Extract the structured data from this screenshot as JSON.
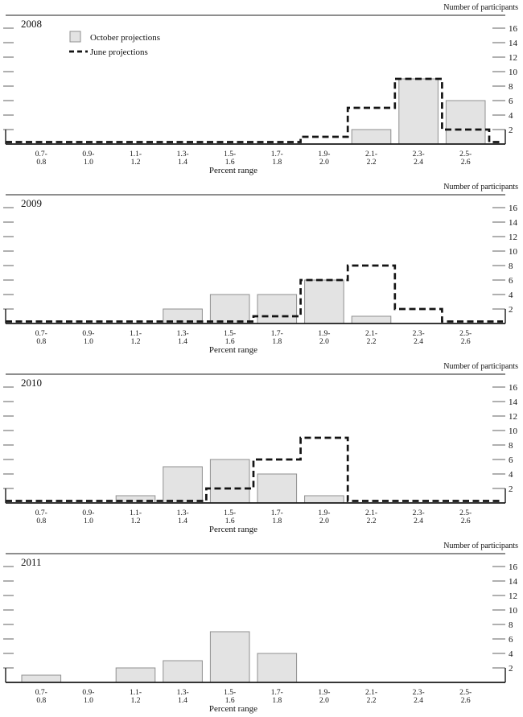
{
  "chart_data": {
    "type": "bar",
    "description": "Four stacked histogram panels showing distributions of participants' projections by percent range, comparing October projections (gray bars) with June projections (dashed step line).",
    "x_axis": {
      "label": "Percent range",
      "categories": [
        "0.7-0.8",
        "0.9-1.0",
        "1.1-1.2",
        "1.3-1.4",
        "1.5-1.6",
        "1.7-1.8",
        "1.9-2.0",
        "2.1-2.2",
        "2.3-2.4",
        "2.5-2.6"
      ]
    },
    "y_axis": {
      "label": "Number of participants",
      "ticks": [
        2,
        4,
        6,
        8,
        10,
        12,
        14,
        16
      ],
      "ylim": [
        0,
        17
      ],
      "grid": false
    },
    "legend": {
      "position": "top-left-first-panel",
      "items": [
        {
          "label": "October projections",
          "swatch": "gray-bar"
        },
        {
          "label": "June projections",
          "swatch": "black-dashed-line"
        }
      ]
    },
    "panels": [
      {
        "year": "2008",
        "series": [
          {
            "name": "October projections",
            "type": "bar",
            "values": [
              0,
              0,
              0,
              0,
              0,
              0,
              0,
              2,
              9,
              6
            ]
          },
          {
            "name": "June projections",
            "type": "step",
            "values": [
              0,
              0,
              0,
              0,
              0,
              0,
              1,
              5,
              9,
              2
            ]
          }
        ]
      },
      {
        "year": "2009",
        "series": [
          {
            "name": "October projections",
            "type": "bar",
            "values": [
              0,
              0,
              0,
              2,
              4,
              4,
              6,
              1,
              0,
              0
            ]
          },
          {
            "name": "June projections",
            "type": "step",
            "values": [
              0,
              0,
              0,
              0,
              0,
              1,
              6,
              8,
              2,
              0
            ]
          }
        ]
      },
      {
        "year": "2010",
        "series": [
          {
            "name": "October projections",
            "type": "bar",
            "values": [
              0,
              0,
              1,
              5,
              6,
              4,
              1,
              0,
              0,
              0
            ]
          },
          {
            "name": "June projections",
            "type": "step",
            "values": [
              0,
              0,
              0,
              0,
              2,
              6,
              9,
              0,
              0,
              0
            ]
          }
        ]
      },
      {
        "year": "2011",
        "series": [
          {
            "name": "October projections",
            "type": "bar",
            "values": [
              1,
              0,
              2,
              3,
              7,
              4,
              0,
              0,
              0,
              0
            ]
          },
          {
            "name": "June projections",
            "type": "step",
            "values": null
          }
        ]
      }
    ],
    "colors": {
      "bar_fill": "#e3e3e3",
      "bar_stroke": "#8f8f8f",
      "june_line": "#141414",
      "baseline": "#1a1a1a",
      "top_rule": "#4a4a4a",
      "tick": "#6e6e6e",
      "text": "#111111",
      "background": "#ffffff"
    }
  }
}
